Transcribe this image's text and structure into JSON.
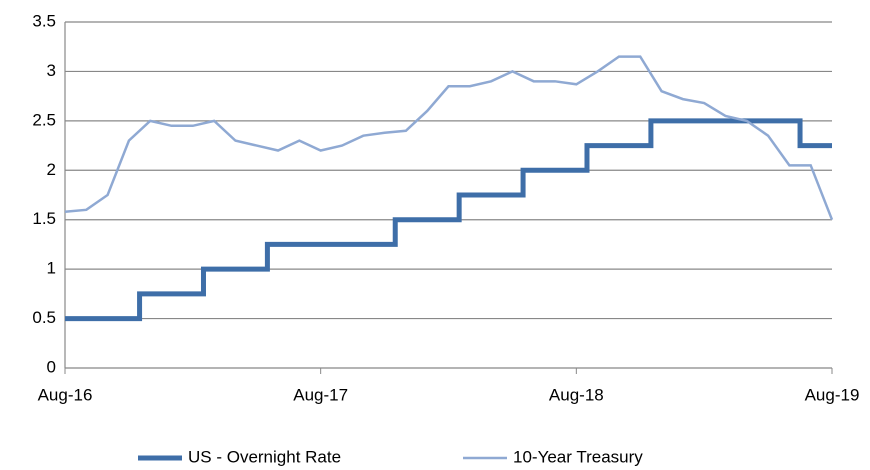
{
  "chart_data": {
    "type": "line",
    "x": [
      "Aug-16",
      "Sep-16",
      "Oct-16",
      "Nov-16",
      "Dec-16",
      "Jan-17",
      "Feb-17",
      "Mar-17",
      "Apr-17",
      "May-17",
      "Jun-17",
      "Jul-17",
      "Aug-17",
      "Sep-17",
      "Oct-17",
      "Nov-17",
      "Dec-17",
      "Jan-18",
      "Feb-18",
      "Mar-18",
      "Apr-18",
      "May-18",
      "Jun-18",
      "Jul-18",
      "Aug-18",
      "Sep-18",
      "Oct-18",
      "Nov-18",
      "Dec-18",
      "Jan-19",
      "Feb-19",
      "Mar-19",
      "Apr-19",
      "May-19",
      "Jun-19",
      "Jul-19",
      "Aug-19"
    ],
    "xticks": [
      "Aug-16",
      "Aug-17",
      "Aug-18",
      "Aug-19"
    ],
    "series": [
      {
        "name": "US - Overnight Rate",
        "color": "#3e6ea8",
        "step": "mid",
        "values": [
          0.5,
          0.5,
          0.5,
          0.5,
          0.75,
          0.75,
          0.75,
          1.0,
          1.0,
          1.0,
          1.25,
          1.25,
          1.25,
          1.25,
          1.25,
          1.25,
          1.5,
          1.5,
          1.5,
          1.75,
          1.75,
          1.75,
          2.0,
          2.0,
          2.0,
          2.25,
          2.25,
          2.25,
          2.5,
          2.5,
          2.5,
          2.5,
          2.5,
          2.5,
          2.5,
          2.25,
          2.25
        ]
      },
      {
        "name": "10-Year Treasury",
        "color": "#8fa9d3",
        "values": [
          1.58,
          1.6,
          1.75,
          2.3,
          2.5,
          2.45,
          2.45,
          2.5,
          2.3,
          2.25,
          2.2,
          2.3,
          2.2,
          2.25,
          2.35,
          2.38,
          2.4,
          2.6,
          2.85,
          2.85,
          2.9,
          3.0,
          2.9,
          2.9,
          2.87,
          3.0,
          3.15,
          3.15,
          2.8,
          2.72,
          2.68,
          2.55,
          2.5,
          2.35,
          2.05,
          2.05,
          1.5
        ]
      }
    ],
    "ylim": [
      0,
      3.5
    ],
    "yticks": [
      0,
      0.5,
      1,
      1.5,
      2,
      2.5,
      3,
      3.5
    ],
    "grid": true,
    "legend": "bottom"
  }
}
